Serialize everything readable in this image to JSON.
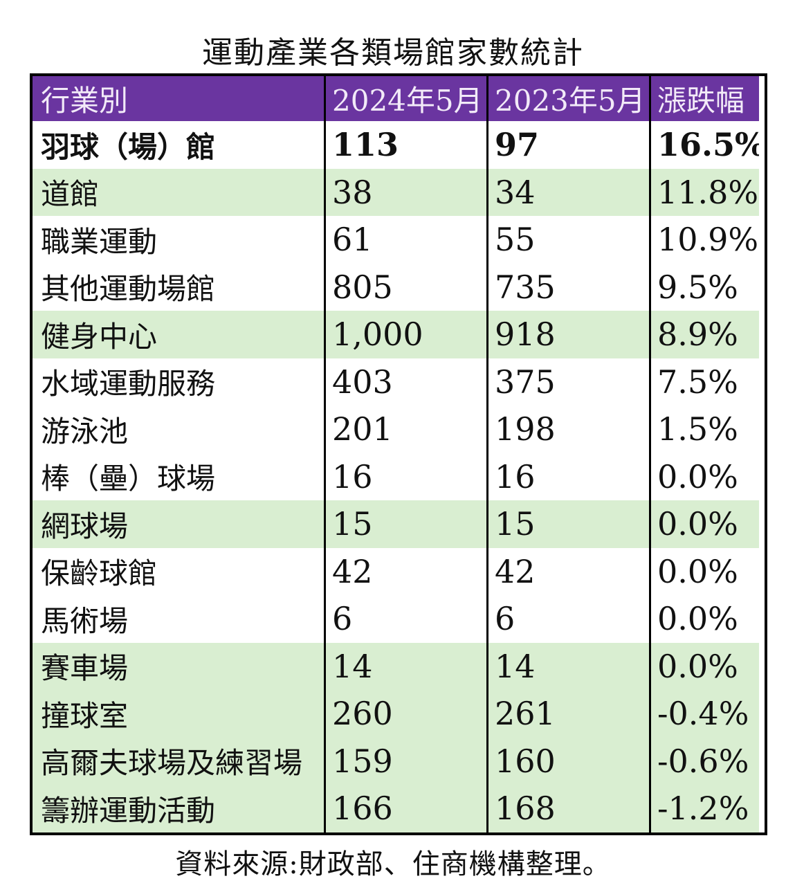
{
  "title": "運動產業各類場館家數統計",
  "source_note": "資料來源:財政部、住商機構整理。",
  "colors": {
    "header_bg": "#6A35A0",
    "header_text": "#F2EAF8",
    "highlight_bg": "#D9EED1",
    "border": "#000000"
  },
  "chart_data": {
    "type": "table",
    "title": "運動產業各類場館家數統計",
    "columns": [
      "行業別",
      "2024年5月",
      "2023年5月",
      "漲跌幅"
    ],
    "rows": [
      {
        "category": "羽球（場）館",
        "v2024": "113",
        "v2023": "97",
        "change": "16.5%"
      },
      {
        "category": "道館",
        "v2024": "38",
        "v2023": "34",
        "change": "11.8%"
      },
      {
        "category": "職業運動",
        "v2024": "61",
        "v2023": "55",
        "change": "10.9%"
      },
      {
        "category": "其他運動場館",
        "v2024": "805",
        "v2023": "735",
        "change": "9.5%"
      },
      {
        "category": "健身中心",
        "v2024": "1,000",
        "v2023": "918",
        "change": "8.9%"
      },
      {
        "category": "水域運動服務",
        "v2024": "403",
        "v2023": "375",
        "change": "7.5%"
      },
      {
        "category": "游泳池",
        "v2024": "201",
        "v2023": "198",
        "change": "1.5%"
      },
      {
        "category": "棒（壘）球場",
        "v2024": "16",
        "v2023": "16",
        "change": "0.0%"
      },
      {
        "category": "網球場",
        "v2024": "15",
        "v2023": "15",
        "change": "0.0%"
      },
      {
        "category": "保齡球館",
        "v2024": "42",
        "v2023": "42",
        "change": "0.0%"
      },
      {
        "category": "馬術場",
        "v2024": "6",
        "v2023": "6",
        "change": "0.0%"
      },
      {
        "category": "賽車場",
        "v2024": "14",
        "v2023": "14",
        "change": "0.0%"
      },
      {
        "category": "撞球室",
        "v2024": "260",
        "v2023": "261",
        "change": "-0.4%"
      },
      {
        "category": "高爾夫球場及練習場",
        "v2024": "159",
        "v2023": "160",
        "change": "-0.6%"
      },
      {
        "category": "籌辦運動活動",
        "v2024": "166",
        "v2023": "168",
        "change": "-1.2%"
      }
    ],
    "source": "資料來源:財政部、住商機構整理。",
    "highlighted_row_indices": [
      1,
      4,
      8,
      11,
      12,
      13,
      14
    ],
    "bold_row_indices": [
      0
    ]
  }
}
